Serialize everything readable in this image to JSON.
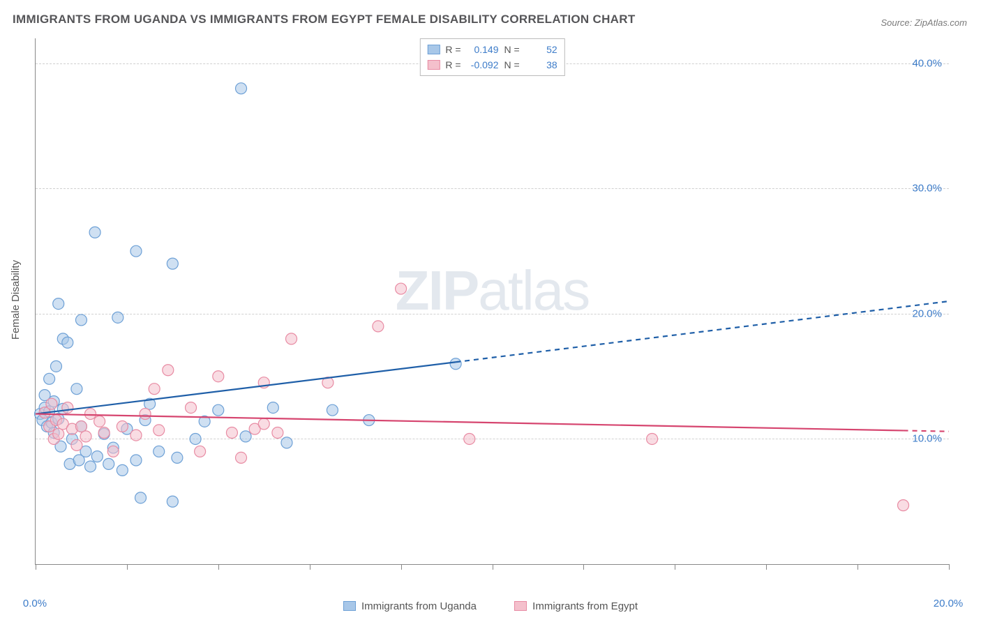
{
  "title": "IMMIGRANTS FROM UGANDA VS IMMIGRANTS FROM EGYPT FEMALE DISABILITY CORRELATION CHART",
  "source_prefix": "Source: ",
  "source": "ZipAtlas.com",
  "watermark": {
    "bold": "ZIP",
    "rest": "atlas"
  },
  "y_axis_label": "Female Disability",
  "chart": {
    "type": "scatter-correlation",
    "background_color": "#ffffff",
    "grid_color": "#d0d0d0",
    "axis_color": "#888888",
    "tick_label_color": "#3d7cc9",
    "xlim": [
      0,
      20
    ],
    "ylim": [
      0,
      42
    ],
    "x_ticks": [
      0,
      2,
      4,
      6,
      8,
      10,
      12,
      14,
      16,
      18,
      20
    ],
    "x_tick_labels": {
      "0": "0.0%",
      "20": "20.0%"
    },
    "y_ticks": [
      10,
      20,
      30,
      40
    ],
    "y_tick_labels": {
      "10": "10.0%",
      "20": "20.0%",
      "30": "30.0%",
      "40": "40.0%"
    },
    "marker_radius": 8,
    "marker_opacity": 0.55,
    "line_width": 2.2
  },
  "series": [
    {
      "name": "Immigrants from Uganda",
      "color_fill": "#a8c7e8",
      "color_stroke": "#6da0d6",
      "line_color": "#1f5fa8",
      "R_label": "R =",
      "R": "0.149",
      "N_label": "N =",
      "N": "52",
      "trend": {
        "x1": 0,
        "y1": 12.0,
        "x2": 20,
        "y2": 21.0,
        "solid_until_x": 9.2
      },
      "points": [
        [
          0.1,
          12.0
        ],
        [
          0.15,
          11.5
        ],
        [
          0.2,
          12.5
        ],
        [
          0.2,
          13.5
        ],
        [
          0.25,
          11.0
        ],
        [
          0.3,
          14.8
        ],
        [
          0.3,
          12.2
        ],
        [
          0.35,
          11.3
        ],
        [
          0.4,
          10.5
        ],
        [
          0.4,
          13.0
        ],
        [
          0.45,
          15.8
        ],
        [
          0.5,
          20.8
        ],
        [
          0.5,
          11.6
        ],
        [
          0.55,
          9.4
        ],
        [
          0.6,
          18.0
        ],
        [
          0.6,
          12.4
        ],
        [
          0.7,
          17.7
        ],
        [
          0.75,
          8.0
        ],
        [
          0.8,
          10.0
        ],
        [
          0.9,
          14.0
        ],
        [
          0.95,
          8.3
        ],
        [
          1.0,
          11.0
        ],
        [
          1.0,
          19.5
        ],
        [
          1.1,
          9.0
        ],
        [
          1.2,
          7.8
        ],
        [
          1.3,
          26.5
        ],
        [
          1.35,
          8.6
        ],
        [
          1.5,
          10.4
        ],
        [
          1.6,
          8.0
        ],
        [
          1.7,
          9.3
        ],
        [
          1.8,
          19.7
        ],
        [
          1.9,
          7.5
        ],
        [
          2.0,
          10.8
        ],
        [
          2.2,
          25.0
        ],
        [
          2.2,
          8.3
        ],
        [
          2.3,
          5.3
        ],
        [
          2.4,
          11.5
        ],
        [
          2.5,
          12.8
        ],
        [
          2.7,
          9.0
        ],
        [
          3.0,
          24.0
        ],
        [
          3.0,
          5.0
        ],
        [
          3.1,
          8.5
        ],
        [
          3.5,
          10.0
        ],
        [
          3.7,
          11.4
        ],
        [
          4.0,
          12.3
        ],
        [
          4.5,
          38.0
        ],
        [
          4.6,
          10.2
        ],
        [
          5.2,
          12.5
        ],
        [
          5.5,
          9.7
        ],
        [
          6.5,
          12.3
        ],
        [
          7.3,
          11.5
        ],
        [
          9.2,
          16.0
        ]
      ]
    },
    {
      "name": "Immigrants from Egypt",
      "color_fill": "#f4c0cc",
      "color_stroke": "#e88ba3",
      "line_color": "#d6456f",
      "R_label": "R =",
      "R": "-0.092",
      "N_label": "N =",
      "N": "38",
      "trend": {
        "x1": 0,
        "y1": 12.0,
        "x2": 20,
        "y2": 10.6,
        "solid_until_x": 19.0
      },
      "points": [
        [
          0.2,
          12.1
        ],
        [
          0.3,
          11.0
        ],
        [
          0.35,
          12.8
        ],
        [
          0.4,
          10.0
        ],
        [
          0.45,
          11.5
        ],
        [
          0.5,
          10.4
        ],
        [
          0.6,
          11.2
        ],
        [
          0.7,
          12.5
        ],
        [
          0.8,
          10.8
        ],
        [
          0.9,
          9.5
        ],
        [
          1.0,
          11.0
        ],
        [
          1.1,
          10.2
        ],
        [
          1.2,
          12.0
        ],
        [
          1.4,
          11.4
        ],
        [
          1.5,
          10.5
        ],
        [
          1.7,
          9.0
        ],
        [
          1.9,
          11.0
        ],
        [
          2.2,
          10.3
        ],
        [
          2.4,
          12.0
        ],
        [
          2.6,
          14.0
        ],
        [
          2.7,
          10.7
        ],
        [
          2.9,
          15.5
        ],
        [
          3.4,
          12.5
        ],
        [
          3.6,
          9.0
        ],
        [
          4.0,
          15.0
        ],
        [
          4.3,
          10.5
        ],
        [
          4.5,
          8.5
        ],
        [
          4.8,
          10.8
        ],
        [
          5.0,
          11.2
        ],
        [
          5.0,
          14.5
        ],
        [
          5.3,
          10.5
        ],
        [
          5.6,
          18.0
        ],
        [
          6.4,
          14.5
        ],
        [
          7.5,
          19.0
        ],
        [
          8.0,
          22.0
        ],
        [
          9.5,
          10.0
        ],
        [
          13.5,
          10.0
        ],
        [
          19.0,
          4.7
        ]
      ]
    }
  ]
}
